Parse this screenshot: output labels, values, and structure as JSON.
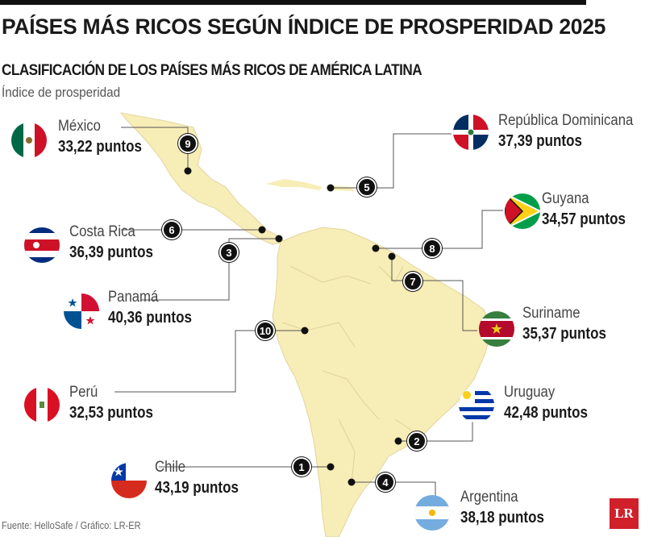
{
  "header": {
    "title": "PAÍSES MÁS RICOS SEGÚN ÍNDICE DE PROSPERIDAD 2025",
    "subtitle": "CLASIFICACIÓN DE LOS PAÍSES MÁS RICOS DE AMÉRICA LATINA",
    "metric": "Índice de prosperidad"
  },
  "countries": {
    "mexico": {
      "rank": "9",
      "name": "México",
      "value": "33,22 puntos"
    },
    "dominicana": {
      "rank": "5",
      "name": "República Dominicana",
      "value": "37,39 puntos"
    },
    "costarica": {
      "rank": "6",
      "name": "Costa Rica",
      "value": "36,39 puntos"
    },
    "guyana": {
      "rank": "8",
      "name": "Guyana",
      "value": "34,57 puntos"
    },
    "panama": {
      "rank": "3",
      "name": "Panamá",
      "value": "40,36 puntos"
    },
    "suriname": {
      "rank": "7",
      "name": "Suriname",
      "value": "35,37 puntos"
    },
    "peru": {
      "rank": "10",
      "name": "Perú",
      "value": "32,53 puntos"
    },
    "uruguay": {
      "rank": "2",
      "name": "Uruguay",
      "value": "42,48 puntos"
    },
    "chile": {
      "rank": "1",
      "name": "Chile",
      "value": "43,19 puntos"
    },
    "argentina": {
      "rank": "4",
      "name": "Argentina",
      "value": "38,18 puntos"
    }
  },
  "footer": {
    "source": "Fuente: HelloSafe / Gráfico: LR-ER",
    "logo": "LR"
  },
  "colors": {
    "land": "#f7edb6",
    "border": "#ddd09a",
    "badge": "#111111",
    "logo": "#d0202a"
  }
}
